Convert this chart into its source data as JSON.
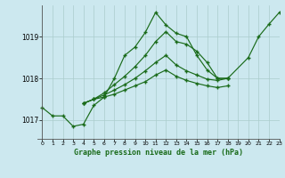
{
  "title": "Graphe pression niveau de la mer (hPa)",
  "background_color": "#cce8ef",
  "grid_color": "#aacccc",
  "line_color": "#1a6b1a",
  "xlim": [
    -0.5,
    23
  ],
  "ylim": [
    1016.55,
    1019.75
  ],
  "yticks": [
    1017,
    1018,
    1019
  ],
  "xticks": [
    0,
    1,
    2,
    3,
    4,
    5,
    6,
    7,
    8,
    9,
    10,
    11,
    12,
    13,
    14,
    15,
    16,
    17,
    18,
    19,
    20,
    21,
    22,
    23
  ],
  "line1_x": [
    0,
    1,
    2,
    3,
    4,
    5,
    6,
    7,
    8,
    9,
    10,
    11,
    12,
    13,
    14,
    15,
    16,
    17,
    18,
    20,
    21,
    22,
    23
  ],
  "line1_y": [
    1017.3,
    1017.1,
    1017.1,
    1016.85,
    1016.9,
    1017.35,
    1017.55,
    1018.0,
    1018.55,
    1018.75,
    1019.1,
    1019.58,
    1019.28,
    1019.08,
    1019.0,
    1018.55,
    1018.2,
    1018.0,
    1018.0,
    1018.5,
    1019.0,
    1019.3,
    1019.58
  ],
  "line2_x": [
    4,
    5,
    6,
    7,
    8,
    9,
    10,
    11,
    12,
    13,
    14,
    15,
    16,
    17,
    18
  ],
  "line2_y": [
    1017.4,
    1017.5,
    1017.65,
    1017.85,
    1018.05,
    1018.28,
    1018.55,
    1018.88,
    1019.12,
    1018.88,
    1018.82,
    1018.65,
    1018.38,
    1018.0,
    1018.0
  ],
  "line3_x": [
    4,
    5,
    6,
    7,
    8,
    9,
    10,
    11,
    12,
    13,
    14,
    15,
    16,
    17,
    18
  ],
  "line3_y": [
    1017.4,
    1017.5,
    1017.6,
    1017.72,
    1017.85,
    1018.0,
    1018.18,
    1018.38,
    1018.55,
    1018.32,
    1018.18,
    1018.08,
    1017.98,
    1017.95,
    1018.0
  ],
  "line4_x": [
    4,
    5,
    6,
    7,
    8,
    9,
    10,
    11,
    12,
    13,
    14,
    15,
    16,
    17,
    18
  ],
  "line4_y": [
    1017.4,
    1017.5,
    1017.55,
    1017.62,
    1017.72,
    1017.82,
    1017.92,
    1018.08,
    1018.2,
    1018.05,
    1017.95,
    1017.88,
    1017.82,
    1017.78,
    1017.82
  ]
}
